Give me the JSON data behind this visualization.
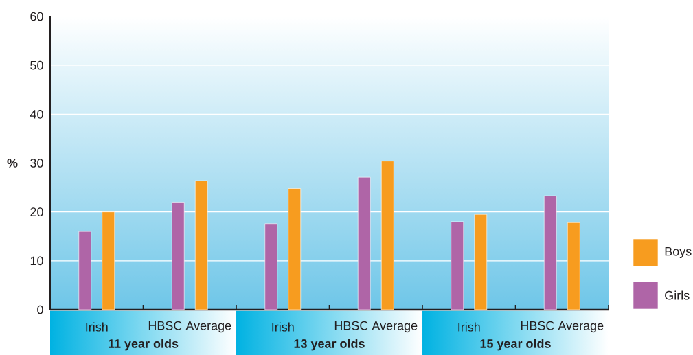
{
  "chart_data": {
    "type": "bar",
    "ylabel": "%",
    "categories": [
      "Irish",
      "HBSC Average",
      "Irish",
      "HBSC Average",
      "Irish",
      "HBSC Average"
    ],
    "series": [
      {
        "name": "Girls",
        "color": "#af65a7",
        "values": [
          16,
          22,
          17.6,
          27.1,
          18,
          23.3
        ]
      },
      {
        "name": "Boys",
        "color": "#f79c1f",
        "values": [
          20,
          26.4,
          24.8,
          30.4,
          19.5,
          17.8
        ]
      }
    ],
    "ylim": [
      0,
      60
    ],
    "yticks": [
      0,
      10,
      20,
      30,
      40,
      50,
      60
    ],
    "grid": "y",
    "legend": "bottom right",
    "annotations": [
      "11 year olds",
      "13 year olds",
      "15 year olds"
    ]
  }
}
